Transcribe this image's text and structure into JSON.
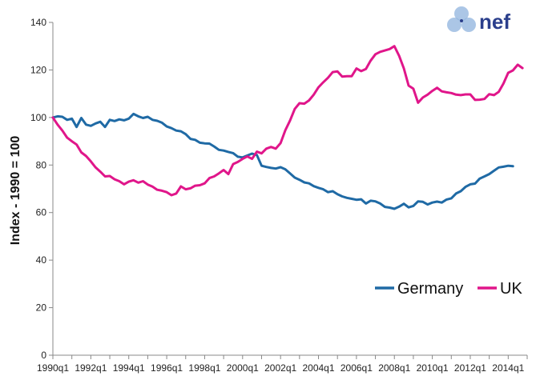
{
  "logo": {
    "text": "nef"
  },
  "colors": {
    "germany": "#1f6aa5",
    "uk": "#e0168a",
    "axis": "#888888",
    "logo_circles": "#8fb3de",
    "logo_text": "#2b3f8c"
  },
  "chart_data": {
    "type": "line",
    "ylabel": "Index - 1990 = 100",
    "xlabel": "",
    "title": "",
    "ylim": [
      0,
      140
    ],
    "yticks": [
      0,
      20,
      40,
      60,
      80,
      100,
      120,
      140
    ],
    "xticks": [
      "1990q1",
      "1992q1",
      "1994q1",
      "1996q1",
      "1998q1",
      "2000q1",
      "2002q1",
      "2004q1",
      "2006q1",
      "2008q1",
      "2010q1",
      "2012q1",
      "2014q1"
    ],
    "xrange": [
      1990.0,
      2015.0
    ],
    "grid": false,
    "legend_position": "bottom-right",
    "series": [
      {
        "name": "Germany",
        "color": "#1f6aa5",
        "points": [
          [
            1990.0,
            100
          ],
          [
            1990.25,
            100.5
          ],
          [
            1990.5,
            100.3
          ],
          [
            1990.75,
            99
          ],
          [
            1991.0,
            99.5
          ],
          [
            1991.25,
            96
          ],
          [
            1991.5,
            99.8
          ],
          [
            1991.75,
            97
          ],
          [
            1992.0,
            96.5
          ],
          [
            1992.25,
            97.5
          ],
          [
            1992.5,
            98.2
          ],
          [
            1992.75,
            96
          ],
          [
            1993.0,
            99
          ],
          [
            1993.25,
            98.5
          ],
          [
            1993.5,
            99.2
          ],
          [
            1993.75,
            98.8
          ],
          [
            1994.0,
            99.5
          ],
          [
            1994.25,
            101.5
          ],
          [
            1994.5,
            100.5
          ],
          [
            1994.75,
            99.8
          ],
          [
            1995.0,
            100.3
          ],
          [
            1995.25,
            99
          ],
          [
            1995.5,
            98.6
          ],
          [
            1995.75,
            97.8
          ],
          [
            1996.0,
            96.2
          ],
          [
            1996.25,
            95.5
          ],
          [
            1996.5,
            94.5
          ],
          [
            1996.75,
            94.2
          ],
          [
            1997.0,
            93
          ],
          [
            1997.25,
            91
          ],
          [
            1997.5,
            90.6
          ],
          [
            1997.75,
            89.4
          ],
          [
            1998.0,
            89.1
          ],
          [
            1998.25,
            89
          ],
          [
            1998.5,
            87.8
          ],
          [
            1998.75,
            86.4
          ],
          [
            1999.0,
            86.1
          ],
          [
            1999.25,
            85.5
          ],
          [
            1999.5,
            85
          ],
          [
            1999.75,
            83.5
          ],
          [
            2000.0,
            83.2
          ],
          [
            2000.25,
            84
          ],
          [
            2000.5,
            84.8
          ],
          [
            2000.75,
            84.2
          ],
          [
            2001.0,
            79.7
          ],
          [
            2001.25,
            79.2
          ],
          [
            2001.5,
            78.8
          ],
          [
            2001.75,
            78.5
          ],
          [
            2002.0,
            79.1
          ],
          [
            2002.25,
            78.2
          ],
          [
            2002.5,
            76.5
          ],
          [
            2002.75,
            74.7
          ],
          [
            2003.0,
            73.8
          ],
          [
            2003.25,
            72.7
          ],
          [
            2003.5,
            72.3
          ],
          [
            2003.75,
            71.1
          ],
          [
            2004.0,
            70.4
          ],
          [
            2004.25,
            69.8
          ],
          [
            2004.5,
            68.6
          ],
          [
            2004.75,
            69
          ],
          [
            2005.0,
            67.7
          ],
          [
            2005.25,
            66.8
          ],
          [
            2005.5,
            66.2
          ],
          [
            2005.75,
            65.8
          ],
          [
            2006.0,
            65.4
          ],
          [
            2006.25,
            65.6
          ],
          [
            2006.5,
            63.8
          ],
          [
            2006.75,
            65
          ],
          [
            2007.0,
            64.7
          ],
          [
            2007.25,
            63.8
          ],
          [
            2007.5,
            62.4
          ],
          [
            2007.75,
            62.1
          ],
          [
            2008.0,
            61.6
          ],
          [
            2008.25,
            62.5
          ],
          [
            2008.5,
            63.7
          ],
          [
            2008.75,
            62.2
          ],
          [
            2009.0,
            62.8
          ],
          [
            2009.25,
            64.7
          ],
          [
            2009.5,
            64.5
          ],
          [
            2009.75,
            63.4
          ],
          [
            2010.0,
            64.2
          ],
          [
            2010.25,
            64.6
          ],
          [
            2010.5,
            64.2
          ],
          [
            2010.75,
            65.5
          ],
          [
            2011.0,
            66
          ],
          [
            2011.25,
            68
          ],
          [
            2011.5,
            69
          ],
          [
            2011.75,
            70.8
          ],
          [
            2012.0,
            71.9
          ],
          [
            2012.25,
            72.2
          ],
          [
            2012.5,
            74.3
          ],
          [
            2012.75,
            75.2
          ],
          [
            2013.0,
            76.2
          ],
          [
            2013.25,
            77.6
          ],
          [
            2013.5,
            79
          ],
          [
            2013.75,
            79.3
          ],
          [
            2014.0,
            79.7
          ],
          [
            2014.25,
            79.5
          ]
        ]
      },
      {
        "name": "UK",
        "color": "#e0168a",
        "points": [
          [
            1990.0,
            100
          ],
          [
            1990.25,
            97
          ],
          [
            1990.5,
            94.5
          ],
          [
            1990.75,
            91.5
          ],
          [
            1991.0,
            90
          ],
          [
            1991.25,
            88.6
          ],
          [
            1991.5,
            85.3
          ],
          [
            1991.75,
            83.8
          ],
          [
            1992.0,
            81.5
          ],
          [
            1992.25,
            79
          ],
          [
            1992.5,
            77.2
          ],
          [
            1992.75,
            75.2
          ],
          [
            1993.0,
            75.4
          ],
          [
            1993.25,
            74
          ],
          [
            1993.5,
            73.2
          ],
          [
            1993.75,
            71.9
          ],
          [
            1994.0,
            73
          ],
          [
            1994.25,
            73.6
          ],
          [
            1994.5,
            72.6
          ],
          [
            1994.75,
            73.2
          ],
          [
            1995.0,
            71.8
          ],
          [
            1995.25,
            70.9
          ],
          [
            1995.5,
            69.6
          ],
          [
            1995.75,
            69.2
          ],
          [
            1996.0,
            68.6
          ],
          [
            1996.25,
            67.3
          ],
          [
            1996.5,
            68
          ],
          [
            1996.75,
            71
          ],
          [
            1997.0,
            69.8
          ],
          [
            1997.25,
            70.2
          ],
          [
            1997.5,
            71.3
          ],
          [
            1997.75,
            71.5
          ],
          [
            1998.0,
            72.3
          ],
          [
            1998.25,
            74.5
          ],
          [
            1998.5,
            75.2
          ],
          [
            1998.75,
            76.5
          ],
          [
            1999.0,
            77.9
          ],
          [
            1999.25,
            76.2
          ],
          [
            1999.5,
            80.4
          ],
          [
            1999.75,
            81.3
          ],
          [
            2000.0,
            82.6
          ],
          [
            2000.25,
            83.6
          ],
          [
            2000.5,
            82.6
          ],
          [
            2000.75,
            85.6
          ],
          [
            2001.0,
            84.9
          ],
          [
            2001.25,
            86.9
          ],
          [
            2001.5,
            87.6
          ],
          [
            2001.75,
            86.9
          ],
          [
            2002.0,
            89.2
          ],
          [
            2002.25,
            94.6
          ],
          [
            2002.5,
            98.7
          ],
          [
            2002.75,
            103.6
          ],
          [
            2003.0,
            106
          ],
          [
            2003.25,
            105.8
          ],
          [
            2003.5,
            107.2
          ],
          [
            2003.75,
            109.6
          ],
          [
            2004.0,
            112.7
          ],
          [
            2004.25,
            114.8
          ],
          [
            2004.5,
            116.7
          ],
          [
            2004.75,
            119.1
          ],
          [
            2005.0,
            119.4
          ],
          [
            2005.25,
            117.2
          ],
          [
            2005.5,
            117.4
          ],
          [
            2005.75,
            117.4
          ],
          [
            2006.0,
            120.6
          ],
          [
            2006.25,
            119.5
          ],
          [
            2006.5,
            120.4
          ],
          [
            2006.75,
            123.9
          ],
          [
            2007.0,
            126.6
          ],
          [
            2007.25,
            127.6
          ],
          [
            2007.5,
            128.2
          ],
          [
            2007.75,
            128.8
          ],
          [
            2008.0,
            130
          ],
          [
            2008.25,
            125.9
          ],
          [
            2008.5,
            120.6
          ],
          [
            2008.75,
            113.4
          ],
          [
            2009.0,
            112.1
          ],
          [
            2009.25,
            106.2
          ],
          [
            2009.5,
            108.4
          ],
          [
            2009.75,
            109.6
          ],
          [
            2010.0,
            111.2
          ],
          [
            2010.25,
            112.5
          ],
          [
            2010.5,
            111
          ],
          [
            2010.75,
            110.6
          ],
          [
            2011.0,
            110.3
          ],
          [
            2011.25,
            109.6
          ],
          [
            2011.5,
            109.4
          ],
          [
            2011.75,
            109.7
          ],
          [
            2012.0,
            109.7
          ],
          [
            2012.25,
            107.4
          ],
          [
            2012.5,
            107.5
          ],
          [
            2012.75,
            107.8
          ],
          [
            2013.0,
            109.8
          ],
          [
            2013.25,
            109.4
          ],
          [
            2013.5,
            110.8
          ],
          [
            2013.75,
            114.3
          ],
          [
            2014.0,
            118.8
          ],
          [
            2014.25,
            119.8
          ],
          [
            2014.5,
            122.2
          ],
          [
            2014.75,
            120.8
          ]
        ]
      }
    ]
  }
}
